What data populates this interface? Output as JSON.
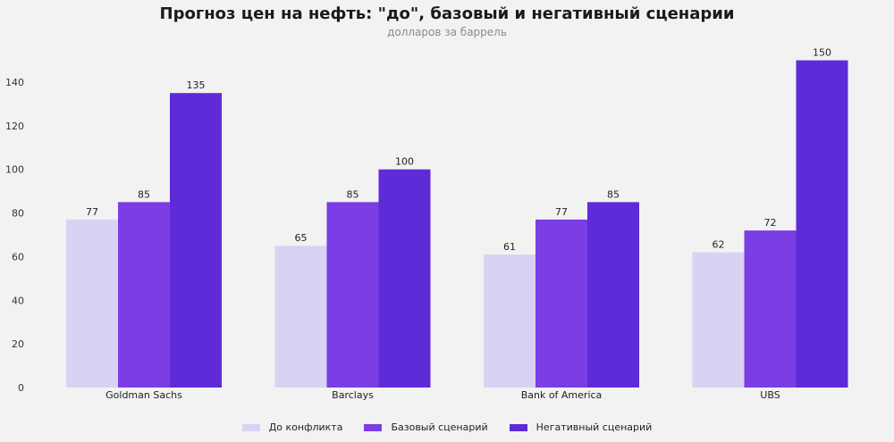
{
  "chart_data": {
    "type": "bar",
    "title": "Прогноз цен на нефть: \"до\", базовый и негативный сценарии",
    "subtitle": "долларов за баррель",
    "categories": [
      "Goldman Sachs",
      "Barclays",
      "Bank of America",
      "UBS"
    ],
    "series": [
      {
        "name": "До конфликта",
        "values": [
          77,
          65,
          61,
          62
        ],
        "color": "#d9d3f3"
      },
      {
        "name": "Базовый сценарий",
        "values": [
          85,
          85,
          77,
          72
        ],
        "color": "#7b3de4"
      },
      {
        "name": "Негативный сценарий",
        "values": [
          135,
          100,
          85,
          150
        ],
        "color": "#5f2bd8"
      }
    ],
    "yticks": [
      0,
      20,
      40,
      60,
      80,
      100,
      120,
      140
    ],
    "ylim": [
      0,
      150
    ],
    "grid": false,
    "legend": "bottom",
    "xlabel": "",
    "ylabel": ""
  }
}
